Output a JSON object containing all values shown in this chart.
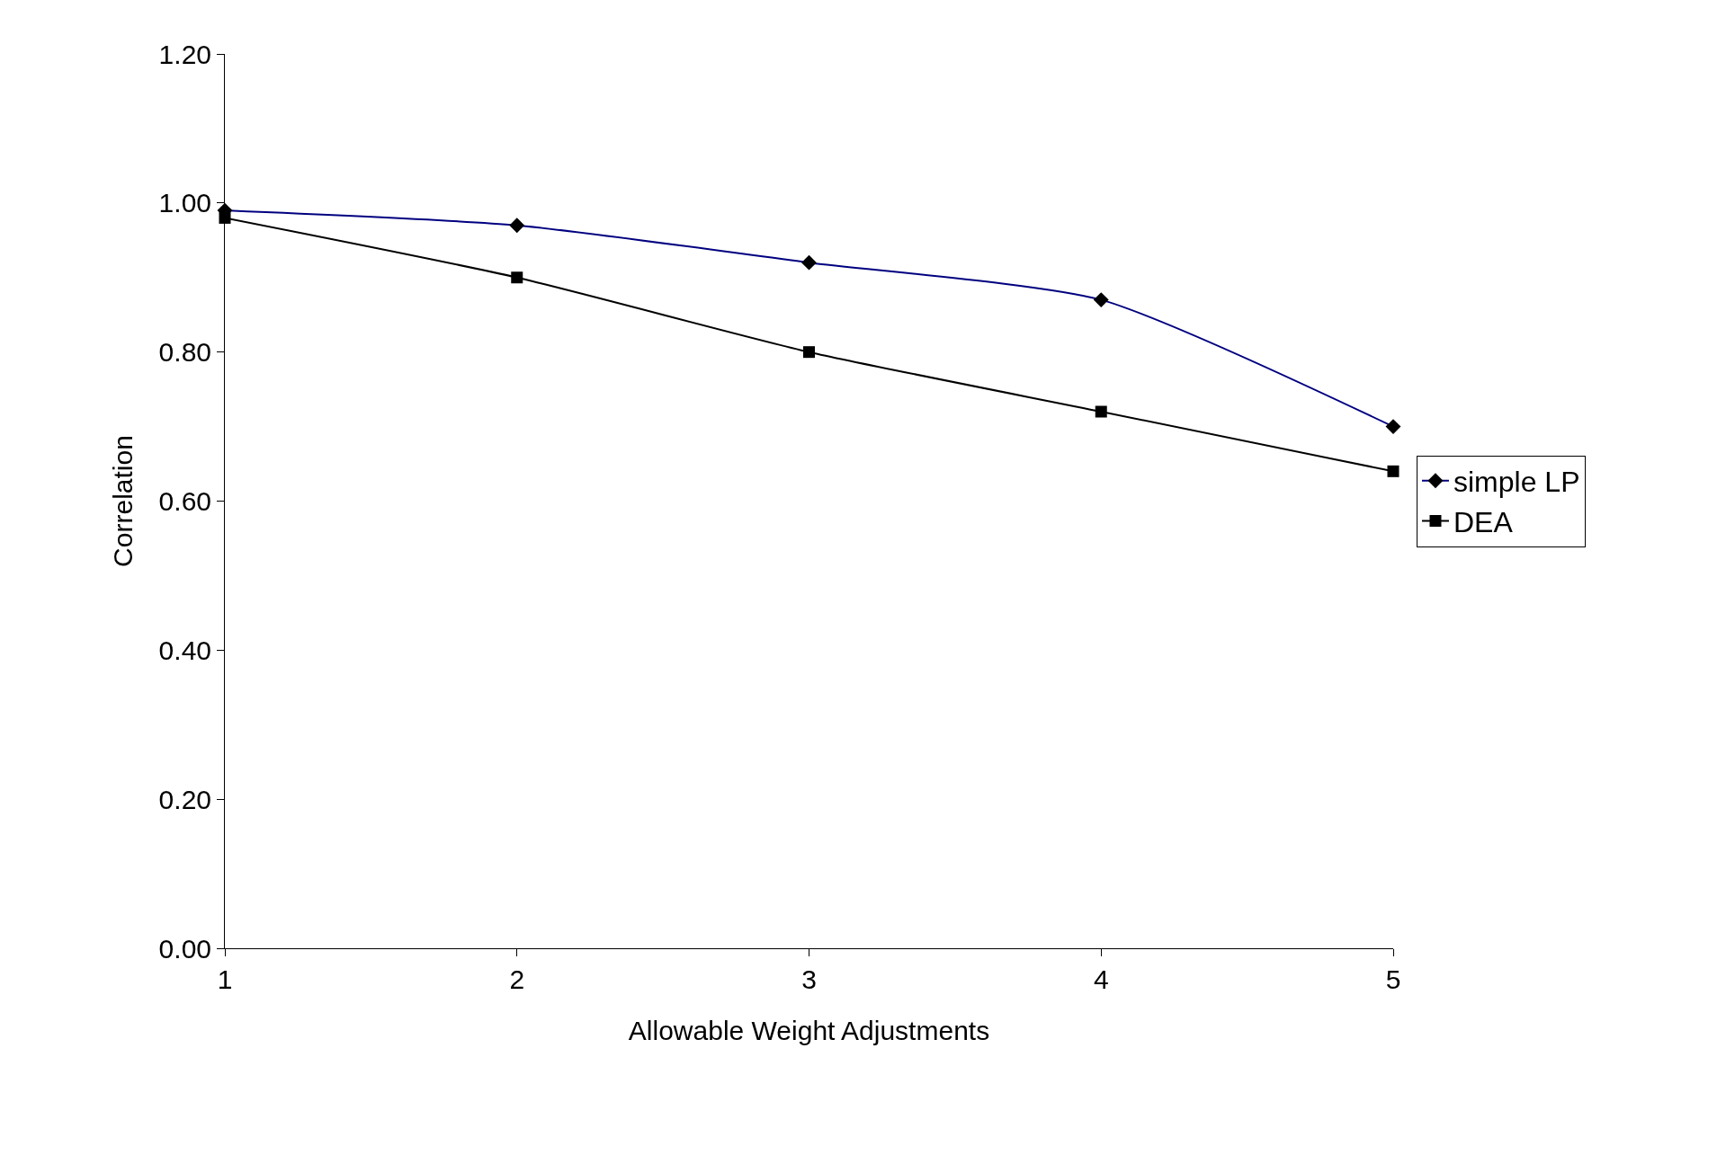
{
  "chart_data": {
    "type": "line",
    "xlabel": "Allowable Weight Adjustments",
    "ylabel": "Correlation",
    "x": [
      1,
      2,
      3,
      4,
      5
    ],
    "series": [
      {
        "name": "simple LP",
        "color": "#000080",
        "marker": "diamond",
        "values": [
          0.99,
          0.97,
          0.92,
          0.87,
          0.7
        ]
      },
      {
        "name": "DEA",
        "color": "#000000",
        "marker": "square",
        "values": [
          0.98,
          0.9,
          0.8,
          0.72,
          0.64
        ]
      }
    ],
    "xlim": [
      1,
      5
    ],
    "xticks": [
      1,
      2,
      3,
      4,
      5
    ],
    "ylim": [
      0,
      1.2
    ],
    "yticks": [
      {
        "value": 0,
        "label": "0.00"
      },
      {
        "value": 0.2,
        "label": "0.20"
      },
      {
        "value": 0.4,
        "label": "0.40"
      },
      {
        "value": 0.6,
        "label": "0.60"
      },
      {
        "value": 0.8,
        "label": "0.80"
      },
      {
        "value": 1.0,
        "label": "1.00"
      },
      {
        "value": 1.2,
        "label": "1.20"
      }
    ],
    "legend": "right",
    "line_style": "solid"
  }
}
